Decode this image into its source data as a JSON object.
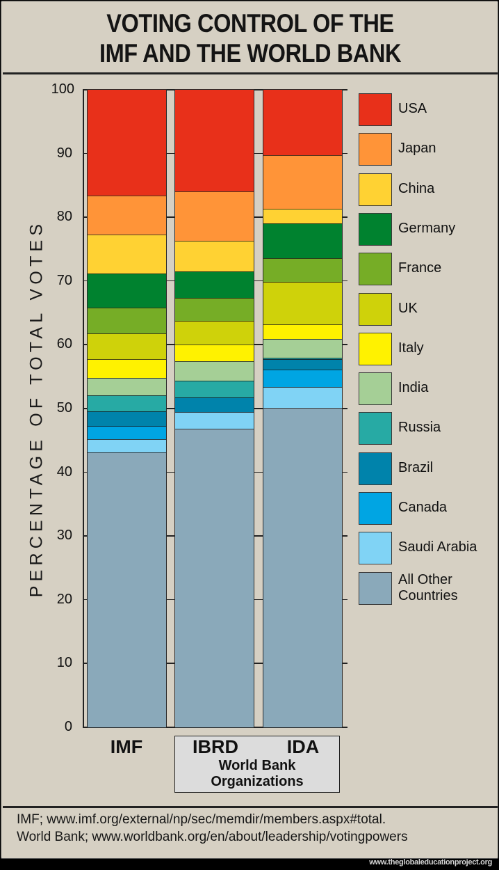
{
  "header": {
    "title_line1": "VOTING CONTROL OF THE",
    "title_line2": "IMF AND THE WORLD BANK"
  },
  "axis": {
    "ylabel": "PERCENTAGE OF TOTAL VOTES",
    "ticks": [
      "0",
      "10",
      "20",
      "30",
      "40",
      "50",
      "60",
      "70",
      "80",
      "90",
      "100"
    ]
  },
  "xaxis": {
    "imf": "IMF",
    "ibrd": "IBRD",
    "ida": "IDA",
    "group_caption_line1": "World Bank",
    "group_caption_line2": "Organizations"
  },
  "legend": [
    {
      "label": "USA",
      "color": "#e8301a"
    },
    {
      "label": "Japan",
      "color": "#ff9438"
    },
    {
      "label": "China",
      "color": "#ffd233"
    },
    {
      "label": "Germany",
      "color": "#00822f"
    },
    {
      "label": "France",
      "color": "#76ad26"
    },
    {
      "label": "UK",
      "color": "#cfd20a"
    },
    {
      "label": "Italy",
      "color": "#fff200"
    },
    {
      "label": "India",
      "color": "#a5cf96"
    },
    {
      "label": "Russia",
      "color": "#27aaa4"
    },
    {
      "label": "Brazil",
      "color": "#0083ab"
    },
    {
      "label": "Canada",
      "color": "#00a5e3"
    },
    {
      "label": "Saudi Arabia",
      "color": "#80d3f5"
    },
    {
      "label": "All Other Countries",
      "label_line1": "All Other",
      "label_line2": "Countries",
      "color": "#8aa9ba"
    }
  ],
  "source": {
    "line1": "IMF; www.imf.org/external/np/sec/memdir/members.aspx#total.",
    "line2": "World Bank; www.worldbank.org/en/about/leadership/votingpowers"
  },
  "watermark": "www.theglobaleducationproject.org",
  "chart_data": {
    "type": "bar",
    "stacked": true,
    "title": "Voting Control of the IMF and the World Bank",
    "xlabel": "",
    "ylabel": "Percentage of Total Votes",
    "ylim": [
      0,
      100
    ],
    "yticks": [
      0,
      10,
      20,
      30,
      40,
      50,
      60,
      70,
      80,
      90,
      100
    ],
    "categories": [
      "IMF",
      "IBRD",
      "IDA"
    ],
    "category_group": {
      "label": "World Bank Organizations",
      "members": [
        "IBRD",
        "IDA"
      ]
    },
    "legend_position": "right",
    "grid": false,
    "series": [
      {
        "name": "All Other Countries",
        "color": "#8aa9ba",
        "values": [
          43.1,
          46.8,
          50.1
        ]
      },
      {
        "name": "Saudi Arabia",
        "color": "#80d3f5",
        "values": [
          2.1,
          2.7,
          3.3
        ]
      },
      {
        "name": "Canada",
        "color": "#00a5e3",
        "values": [
          2.1,
          0.0,
          2.7
        ]
      },
      {
        "name": "Brazil",
        "color": "#0083ab",
        "values": [
          2.3,
          2.2,
          1.6
        ]
      },
      {
        "name": "Russia",
        "color": "#27aaa4",
        "values": [
          2.5,
          2.7,
          0.3
        ]
      },
      {
        "name": "India",
        "color": "#a5cf96",
        "values": [
          2.7,
          3.0,
          2.9
        ]
      },
      {
        "name": "Italy",
        "color": "#fff200",
        "values": [
          3.0,
          2.6,
          2.3
        ]
      },
      {
        "name": "UK",
        "color": "#cfd20a",
        "values": [
          4.0,
          3.8,
          6.7
        ]
      },
      {
        "name": "France",
        "color": "#76ad26",
        "values": [
          4.0,
          3.6,
          3.7
        ]
      },
      {
        "name": "Germany",
        "color": "#00822f",
        "values": [
          5.4,
          4.1,
          5.4
        ]
      },
      {
        "name": "China",
        "color": "#ffd233",
        "values": [
          6.1,
          4.8,
          2.3
        ]
      },
      {
        "name": "Japan",
        "color": "#ff9438",
        "values": [
          6.1,
          7.8,
          8.4
        ]
      },
      {
        "name": "USA",
        "color": "#e8301a",
        "values": [
          16.6,
          15.9,
          10.3
        ]
      }
    ]
  }
}
